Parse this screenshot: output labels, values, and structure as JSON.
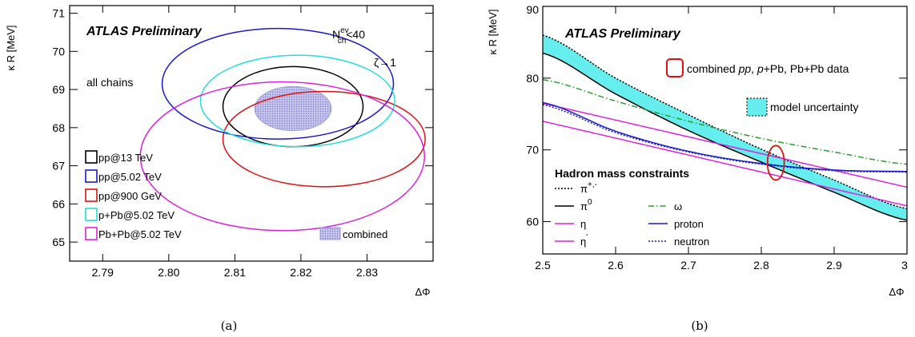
{
  "chart_data": [
    {
      "type": "scatter",
      "panel_label": "(a)",
      "xlabel": "ΔΦ",
      "ylabel": "κ R [MeV]",
      "xlim": [
        2.785,
        2.84
      ],
      "ylim": [
        64.5,
        71.2
      ],
      "x_ticks": [
        2.79,
        2.8,
        2.81,
        2.82,
        2.83
      ],
      "y_ticks": [
        65,
        66,
        67,
        68,
        69,
        70,
        71
      ],
      "grid": false,
      "experiment_label": "ATLAS Preliminary",
      "annotations": {
        "chains": "all chains",
        "nch_symbol": "N",
        "nch_sup": "ev",
        "nch_sub": "ch",
        "nch_cut": "<40",
        "zeta": "ζ→1"
      },
      "legend_position": "bottom-left",
      "series": [
        {
          "name": "pp@13 TeV",
          "color": "#000000",
          "center": [
            2.8188,
            68.55
          ],
          "half_width": 0.0106,
          "half_height": 1.05
        },
        {
          "name": "pp@5.02 TeV",
          "color": "#1a1acc",
          "center": [
            2.8165,
            69.15
          ],
          "half_width": 0.0175,
          "half_height": 1.45
        },
        {
          "name": "pp@900 GeV",
          "color": "#dd1111",
          "center": [
            2.8235,
            67.7
          ],
          "half_width": 0.0153,
          "half_height": 1.25
        },
        {
          "name": "p+Pb@5.02 TeV",
          "color": "#22dddd",
          "center": [
            2.8195,
            68.7
          ],
          "half_width": 0.0147,
          "half_height": 1.2
        },
        {
          "name": "Pb+Pb@5.02 TeV",
          "color": "#dd22dd",
          "center": [
            2.8172,
            67.25
          ],
          "half_width": 0.0215,
          "half_height": 1.95
        }
      ],
      "combined": {
        "name": "combined",
        "color": "#9a9ad8",
        "center": [
          2.8188,
          68.5
        ],
        "half_width": 0.0058,
        "half_height": 0.58
      }
    },
    {
      "type": "line",
      "panel_label": "(b)",
      "xlabel": "ΔΦ",
      "ylabel": "κ R [MeV]",
      "xlim": [
        2.5,
        3.0
      ],
      "ylim": [
        55.5,
        90
      ],
      "x_ticks": [
        2.5,
        2.6,
        2.7,
        2.8,
        2.9,
        3.0
      ],
      "x_tick_labels": [
        "2.5",
        "2.6",
        "2.7",
        "2.8",
        "2.9",
        "3"
      ],
      "y_ticks": [
        60,
        70,
        80,
        90
      ],
      "grid": false,
      "experiment_label": "ATLAS Preliminary",
      "legend_title": "Hadron mass constraints",
      "legend_position": "bottom-left",
      "band": {
        "name": "model uncertainty",
        "color": "#66eeee",
        "x": [
          2.5,
          3.0
        ],
        "upper": [
          86,
          61.8
        ],
        "lower": [
          83.5,
          60.2
        ]
      },
      "combined_marker": {
        "name": "combined pp, p+Pb, Pb+Pb data",
        "color": "#dd1111",
        "center": [
          2.82,
          68.2
        ],
        "half_width": 0.0115,
        "half_height": 2.4
      },
      "combined_label_parts": [
        {
          "text": "combined ",
          "italic": false
        },
        {
          "text": "pp",
          "italic": true
        },
        {
          "text": ", ",
          "italic": false
        },
        {
          "text": "p",
          "italic": true
        },
        {
          "text": "+Pb, Pb+Pb data",
          "italic": false
        }
      ],
      "series": [
        {
          "name": "π",
          "sup": "+,-",
          "color": "#000000",
          "dash": "dotted",
          "x": [
            2.5,
            2.6,
            2.7,
            2.8,
            2.9,
            3.0
          ],
          "y": [
            86,
            80,
            74.9,
            70.1,
            65.8,
            61.8
          ]
        },
        {
          "name": "π",
          "sup": "0",
          "color": "#000000",
          "dash": "solid",
          "x": [
            2.5,
            2.6,
            2.7,
            2.8,
            2.9,
            3.0
          ],
          "y": [
            83.5,
            77.8,
            72.7,
            68.3,
            64.1,
            60.2
          ]
        },
        {
          "name": "η",
          "sup": "",
          "color": "#dd22dd",
          "dash": "solid",
          "x": [
            2.5,
            3.0
          ],
          "y": [
            74,
            62.2
          ]
        },
        {
          "name": "η",
          "sup": "'",
          "color": "#dd22dd",
          "dash": "solid",
          "x": [
            2.5,
            3.0
          ],
          "y": [
            76.5,
            64.8
          ]
        },
        {
          "name": "ω",
          "sup": "",
          "color": "#2aa02a",
          "dash": "dashdot",
          "x": [
            2.5,
            2.6,
            2.7,
            2.8,
            2.9,
            3.0
          ],
          "y": [
            79.8,
            76.8,
            74,
            71.6,
            69.7,
            68
          ]
        },
        {
          "name": "proton",
          "sup": "",
          "color": "#1a1acc",
          "dash": "solid",
          "x": [
            2.5,
            2.6,
            2.7,
            2.8,
            2.9,
            3.0
          ],
          "y": [
            76.6,
            72.6,
            69.8,
            68.1,
            67.2,
            67
          ]
        },
        {
          "name": "neutron",
          "sup": "",
          "color": "#1a1acc",
          "dash": "dotted",
          "x": [
            2.5,
            2.6,
            2.7,
            2.8,
            2.9,
            3.0
          ],
          "y": [
            76.3,
            72.4,
            69.7,
            68.0,
            67.1,
            66.9
          ]
        }
      ]
    }
  ]
}
